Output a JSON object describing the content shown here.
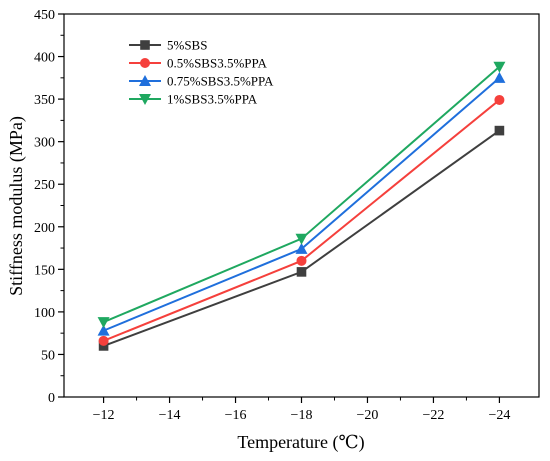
{
  "chart_data": {
    "type": "line",
    "xlabel": "Temperature (℃)",
    "ylabel": "Stiffness modulus (MPa)",
    "x": [
      -12,
      -18,
      -24
    ],
    "xticks": [
      -12,
      -14,
      -16,
      -18,
      -20,
      -22,
      -24
    ],
    "xtick_labels": [
      "−12",
      "−14",
      "−16",
      "−18",
      "−20",
      "−22",
      "−24"
    ],
    "xlim": [
      -10.8,
      -25.2
    ],
    "ylim": [
      0,
      450
    ],
    "yticks": [
      0,
      50,
      100,
      150,
      200,
      250,
      300,
      350,
      400,
      450
    ],
    "grid": false,
    "legend_position": "top-left",
    "series": [
      {
        "name": "5%SBS",
        "values": [
          60,
          147,
          313
        ],
        "color": "#3f3f3f",
        "marker": "square"
      },
      {
        "name": "0.5%SBS3.5%PPA",
        "values": [
          66,
          160,
          349
        ],
        "color": "#f5403c",
        "marker": "circle"
      },
      {
        "name": "0.75%SBS3.5%PPA",
        "values": [
          78,
          174,
          375
        ],
        "color": "#1f6fdc",
        "marker": "triangle-up"
      },
      {
        "name": "1%SBS3.5%PPA",
        "values": [
          88,
          186,
          388
        ],
        "color": "#1fa860",
        "marker": "triangle-down"
      }
    ]
  }
}
